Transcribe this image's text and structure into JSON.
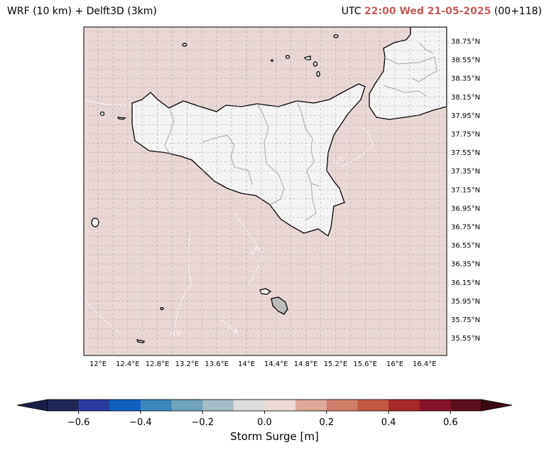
{
  "title": {
    "left": "WRF (10 km) + Delft3D (3km)",
    "utc_prefix": "UTC",
    "datetime": "22:00 Wed 21-05-2025",
    "lead": "(00+118)"
  },
  "colors": {
    "sea": "#e9d7d5",
    "land": "#f4f4f4",
    "accent": "#c75c5c"
  },
  "map": {
    "lon_labels": [
      "12°E",
      "12.4°E",
      "12.8°E",
      "13.2°E",
      "13.6°E",
      "14°E",
      "14.4°E",
      "14.8°E",
      "15.2°E",
      "15.6°E",
      "16°E",
      "16.4°E"
    ],
    "lat_labels": [
      "38.75°N",
      "38.55°N",
      "38.35°N",
      "38.15°N",
      "37.95°N",
      "37.75°N",
      "37.55°N",
      "37.35°N",
      "37.15°N",
      "36.95°N",
      "36.75°N",
      "36.55°N",
      "36.35°N",
      "36.15°N",
      "35.95°N",
      "35.75°N",
      "35.55°N"
    ],
    "contour_label": "0.0"
  },
  "colorbar": {
    "label": "Storm Surge [m]",
    "ticks": [
      "−0.6",
      "−0.4",
      "−0.2",
      "0.0",
      "0.2",
      "0.4",
      "0.6"
    ],
    "colors": [
      "#1f2554",
      "#2a3d9e",
      "#1060c0",
      "#3a86be",
      "#6ea4bc",
      "#a6bcc6",
      "#dcdcdc",
      "#ecd9d5",
      "#ddaa98",
      "#cf7f69",
      "#c15a40",
      "#a62a28",
      "#86122a",
      "#5a0e1e"
    ],
    "min_color": "#1a1f47",
    "max_color": "#3d0812"
  }
}
